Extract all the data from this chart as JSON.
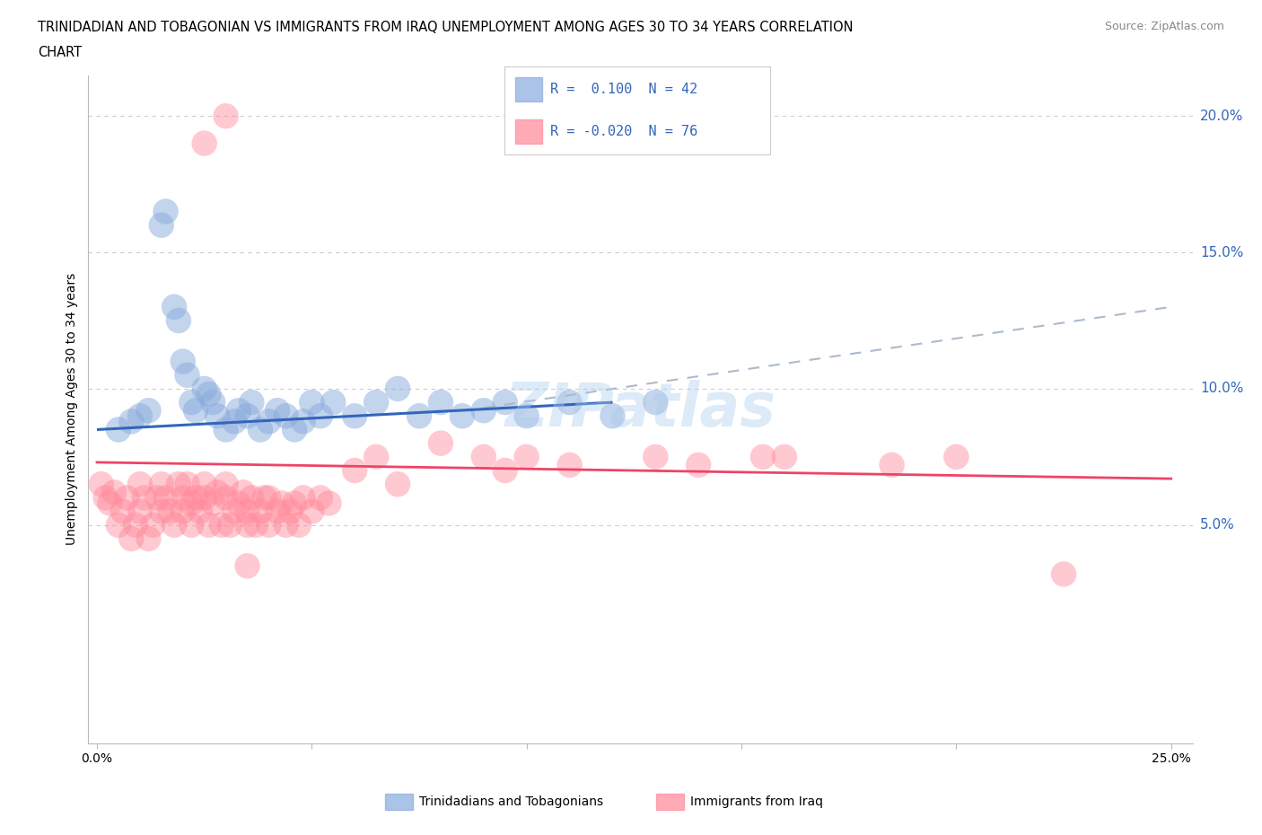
{
  "title_line1": "TRINIDADIAN AND TOBAGONIAN VS IMMIGRANTS FROM IRAQ UNEMPLOYMENT AMONG AGES 30 TO 34 YEARS CORRELATION",
  "title_line2": "CHART",
  "source_text": "Source: ZipAtlas.com",
  "ylabel": "Unemployment Among Ages 30 to 34 years",
  "xlim": [
    -0.002,
    0.255
  ],
  "ylim": [
    -0.03,
    0.215
  ],
  "xticks": [
    0.0,
    0.05,
    0.1,
    0.15,
    0.2,
    0.25
  ],
  "xticklabels": [
    "0.0%",
    "",
    "",
    "",
    "",
    "25.0%"
  ],
  "ytick_vals": [
    0.05,
    0.1,
    0.15,
    0.2
  ],
  "ytick_labels": [
    "5.0%",
    "10.0%",
    "15.0%",
    "20.0%"
  ],
  "blue_color": "#88AADD",
  "pink_color": "#FF8899",
  "blue_line_color": "#3366BB",
  "pink_line_color": "#EE4466",
  "dashed_line_color": "#AABBCC",
  "background_color": "#FFFFFF",
  "grid_color": "#CCCCCC",
  "watermark_color": "#AACCEE",
  "label1": "Trinidadians and Tobagonians",
  "label2": "Immigrants from Iraq",
  "blue_R": "0.100",
  "blue_N": "42",
  "pink_R": "-0.020",
  "pink_N": "76",
  "blue_line_x0": 0.0,
  "blue_line_y0": 0.085,
  "blue_line_x1": 0.12,
  "blue_line_y1": 0.095,
  "dash_line_x0": 0.09,
  "dash_line_y0": 0.093,
  "dash_line_x1": 0.25,
  "dash_line_y1": 0.13,
  "pink_line_x0": 0.0,
  "pink_line_y0": 0.073,
  "pink_line_x1": 0.25,
  "pink_line_y1": 0.067,
  "blue_x": [
    0.005,
    0.008,
    0.01,
    0.012,
    0.015,
    0.016,
    0.018,
    0.019,
    0.02,
    0.021,
    0.022,
    0.023,
    0.025,
    0.026,
    0.027,
    0.028,
    0.03,
    0.032,
    0.033,
    0.035,
    0.036,
    0.038,
    0.04,
    0.042,
    0.044,
    0.046,
    0.048,
    0.05,
    0.052,
    0.055,
    0.06,
    0.065,
    0.07,
    0.075,
    0.08,
    0.085,
    0.09,
    0.095,
    0.1,
    0.11,
    0.12,
    0.13
  ],
  "blue_y": [
    0.085,
    0.088,
    0.09,
    0.092,
    0.16,
    0.165,
    0.13,
    0.125,
    0.11,
    0.105,
    0.095,
    0.092,
    0.1,
    0.098,
    0.095,
    0.09,
    0.085,
    0.088,
    0.092,
    0.09,
    0.095,
    0.085,
    0.088,
    0.092,
    0.09,
    0.085,
    0.088,
    0.095,
    0.09,
    0.095,
    0.09,
    0.095,
    0.1,
    0.09,
    0.095,
    0.09,
    0.092,
    0.095,
    0.09,
    0.095,
    0.09,
    0.095
  ],
  "pink_x": [
    0.001,
    0.002,
    0.003,
    0.004,
    0.005,
    0.006,
    0.007,
    0.008,
    0.009,
    0.01,
    0.01,
    0.011,
    0.012,
    0.013,
    0.014,
    0.015,
    0.015,
    0.016,
    0.017,
    0.018,
    0.019,
    0.02,
    0.02,
    0.021,
    0.022,
    0.022,
    0.023,
    0.024,
    0.025,
    0.025,
    0.026,
    0.027,
    0.028,
    0.029,
    0.03,
    0.03,
    0.031,
    0.032,
    0.033,
    0.034,
    0.035,
    0.035,
    0.036,
    0.037,
    0.038,
    0.039,
    0.04,
    0.04,
    0.042,
    0.043,
    0.044,
    0.045,
    0.046,
    0.047,
    0.048,
    0.05,
    0.052,
    0.054,
    0.06,
    0.065,
    0.07,
    0.08,
    0.09,
    0.095,
    0.1,
    0.11,
    0.13,
    0.14,
    0.155,
    0.16,
    0.185,
    0.2,
    0.225,
    0.025,
    0.03,
    0.035
  ],
  "pink_y": [
    0.065,
    0.06,
    0.058,
    0.062,
    0.05,
    0.055,
    0.06,
    0.045,
    0.05,
    0.065,
    0.055,
    0.06,
    0.045,
    0.05,
    0.06,
    0.055,
    0.065,
    0.06,
    0.055,
    0.05,
    0.065,
    0.055,
    0.06,
    0.065,
    0.05,
    0.058,
    0.06,
    0.055,
    0.06,
    0.065,
    0.05,
    0.058,
    0.062,
    0.05,
    0.06,
    0.065,
    0.05,
    0.055,
    0.058,
    0.062,
    0.05,
    0.055,
    0.06,
    0.05,
    0.055,
    0.06,
    0.05,
    0.06,
    0.055,
    0.058,
    0.05,
    0.055,
    0.058,
    0.05,
    0.06,
    0.055,
    0.06,
    0.058,
    0.07,
    0.075,
    0.065,
    0.08,
    0.075,
    0.07,
    0.075,
    0.072,
    0.075,
    0.072,
    0.075,
    0.075,
    0.072,
    0.075,
    0.032,
    0.19,
    0.2,
    0.035
  ]
}
